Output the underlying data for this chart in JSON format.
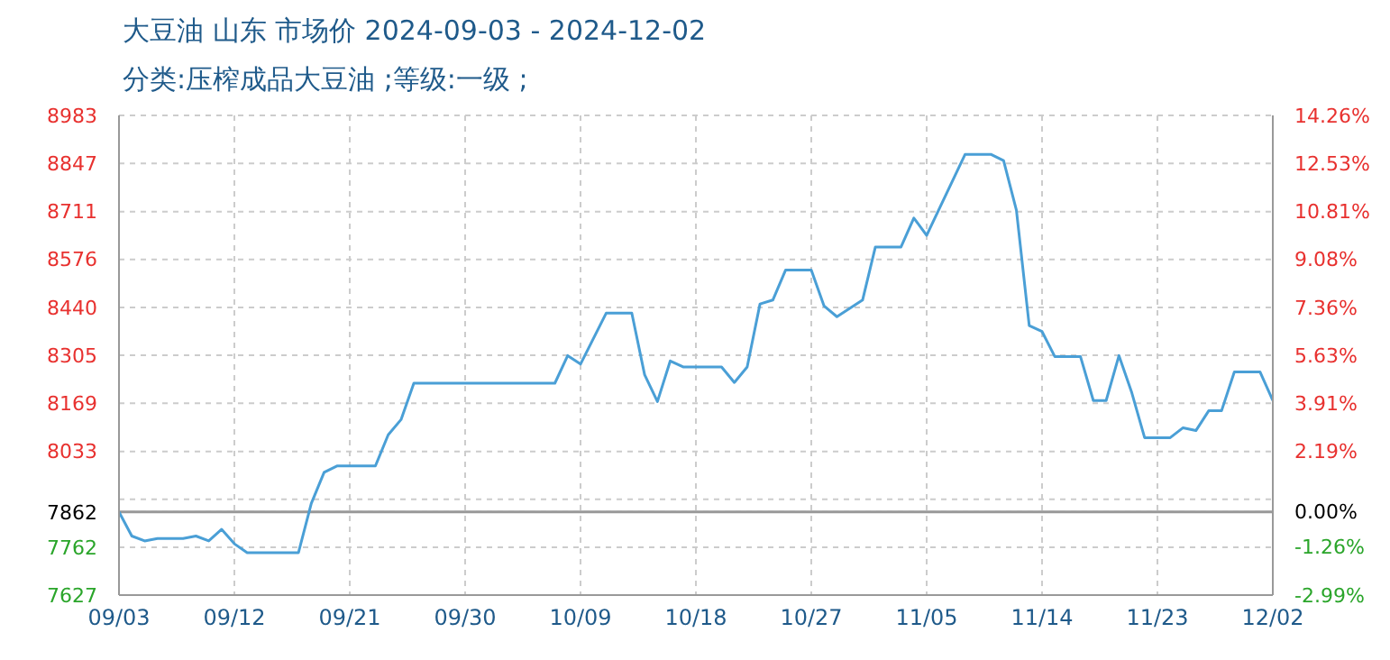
{
  "chart_data": {
    "type": "line",
    "title": "大豆油 山东 市场价 2024-09-03 - 2024-12-02",
    "subtitle": "分类:压榨成品大豆油 ;等级:一级 ;",
    "x": [
      "2024-09-03",
      "2024-09-04",
      "2024-09-05",
      "2024-09-06",
      "2024-09-08",
      "2024-09-09",
      "2024-09-10",
      "2024-09-11",
      "2024-09-12",
      "2024-09-13",
      "2024-09-17",
      "2024-09-18",
      "2024-09-19",
      "2024-09-20",
      "2024-09-23",
      "2024-09-24",
      "2024-09-25",
      "2024-09-26",
      "2024-10-07",
      "2024-10-08",
      "2024-10-09",
      "2024-10-11",
      "2024-10-13",
      "2024-10-14",
      "2024-10-15",
      "2024-10-16",
      "2024-10-17",
      "2024-10-20",
      "2024-10-21",
      "2024-10-22",
      "2024-10-23",
      "2024-10-24",
      "2024-10-25",
      "2024-10-27",
      "2024-10-28",
      "2024-10-29",
      "2024-10-31",
      "2024-11-01",
      "2024-11-03",
      "2024-11-04",
      "2024-11-05",
      "2024-11-08",
      "2024-11-10",
      "2024-11-11",
      "2024-11-12",
      "2024-11-13",
      "2024-11-14",
      "2024-11-15",
      "2024-11-17",
      "2024-11-18",
      "2024-11-19",
      "2024-11-20",
      "2024-11-21",
      "2024-11-22",
      "2024-11-24",
      "2024-11-25",
      "2024-11-26",
      "2024-11-27",
      "2024-11-28",
      "2024-11-29",
      "2024-12-01",
      "2024-12-02"
    ],
    "series": [
      {
        "color": "#4a9fd6",
        "values": [
          7862,
          7794,
          7780,
          7787,
          7787,
          7794,
          7780,
          7813,
          7772,
          7747,
          7747,
          7886,
          7974,
          7992,
          7992,
          8080,
          8123,
          8226,
          8226,
          8304,
          8280,
          8424,
          8424,
          8250,
          8174,
          8289,
          8272,
          8272,
          8228,
          8272,
          8450,
          8461,
          8546,
          8546,
          8444,
          8414,
          8461,
          8611,
          8611,
          8693,
          8644,
          8873,
          8873,
          8855,
          8715,
          8389,
          8372,
          8301,
          8301,
          8177,
          8177,
          8304,
          8199,
          8072,
          8072,
          8100,
          8092,
          8148,
          8148,
          8258,
          8258,
          8177
        ]
      }
    ],
    "xlim": [
      "2024-09-03",
      "2024-12-02"
    ],
    "xticks": [
      {
        "value": "2024-09-03",
        "label": "09/03"
      },
      {
        "value": "2024-09-12",
        "label": "09/12"
      },
      {
        "value": "2024-09-21",
        "label": "09/21"
      },
      {
        "value": "2024-09-30",
        "label": "09/30"
      },
      {
        "value": "2024-10-09",
        "label": "10/09"
      },
      {
        "value": "2024-10-18",
        "label": "10/18"
      },
      {
        "value": "2024-10-27",
        "label": "10/27"
      },
      {
        "value": "2024-11-05",
        "label": "11/05"
      },
      {
        "value": "2024-11-14",
        "label": "11/14"
      },
      {
        "value": "2024-11-23",
        "label": "11/23"
      },
      {
        "value": "2024-12-02",
        "label": "12/02"
      }
    ],
    "ylim": [
      7627,
      8983
    ],
    "yticks": [
      7627,
      7762,
      {
        "value": 7898,
        "label": null
      },
      7862,
      8033,
      8169,
      8305,
      8440,
      8576,
      8711,
      8847,
      8983
    ],
    "y2lim": [
      -2.99,
      14.26
    ],
    "y2ticks": [
      {
        "value": -2.99,
        "label": "-2.99%"
      },
      {
        "value": -1.26,
        "label": "-1.26%"
      },
      {
        "value": 0,
        "label": "0.00%"
      },
      {
        "value": 2.19,
        "label": "2.19%"
      },
      {
        "value": 3.91,
        "label": "3.91%"
      },
      {
        "value": 5.63,
        "label": "5.63%"
      },
      {
        "value": 7.36,
        "label": "7.36%"
      },
      {
        "value": 9.08,
        "label": "9.08%"
      },
      {
        "value": 10.81,
        "label": "10.81%"
      },
      {
        "value": 12.53,
        "label": "12.53%"
      },
      {
        "value": 14.26,
        "label": "14.26%"
      }
    ],
    "ref_lines": [
      {
        "axis": "y",
        "value": 7862,
        "color": "#999999"
      }
    ],
    "grid": true,
    "marker": "none",
    "line_style": "solid",
    "legend": false
  }
}
